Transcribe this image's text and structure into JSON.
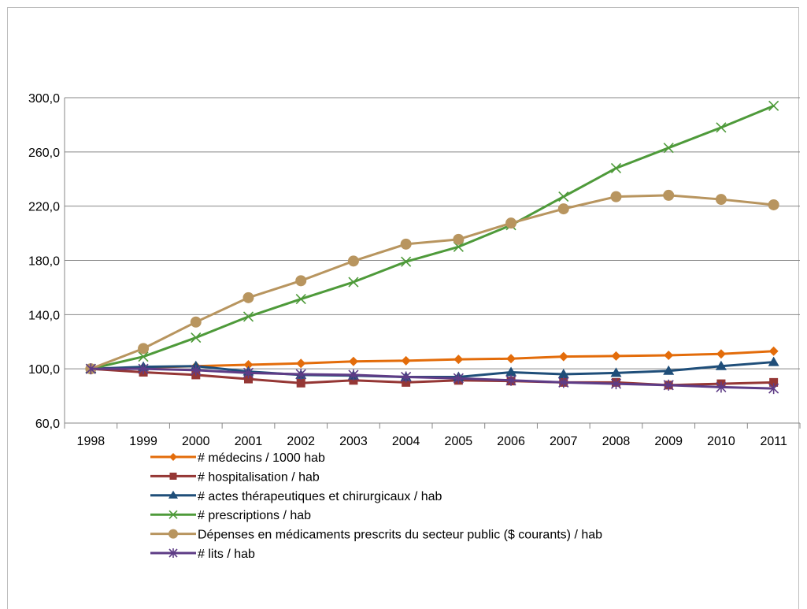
{
  "chart_data": {
    "type": "line",
    "title": "",
    "xlabel": "",
    "ylabel": "",
    "x": [
      "1998",
      "1999",
      "2000",
      "2001",
      "2002",
      "2003",
      "2004",
      "2005",
      "2006",
      "2007",
      "2008",
      "2009",
      "2010",
      "2011"
    ],
    "ylim": [
      60,
      300
    ],
    "yticks": [
      60,
      100,
      140,
      180,
      220,
      260,
      300
    ],
    "ytick_labels": [
      "60,0",
      "100,0",
      "140,0",
      "180,0",
      "220,0",
      "260,0",
      "300,0"
    ],
    "grid": true,
    "legend_position": "bottom",
    "series": [
      {
        "name": "# médecins / 1000 hab",
        "color": "#E36C0A",
        "marker": "diamond",
        "values": [
          100,
          101,
          102,
          103,
          104,
          105.5,
          106,
          107,
          107.5,
          109,
          109.5,
          110,
          111,
          113
        ]
      },
      {
        "name": "# hospitalisation / hab",
        "color": "#953735",
        "marker": "square",
        "values": [
          100,
          97.5,
          95.5,
          92.5,
          89.5,
          91.5,
          90,
          91.5,
          91,
          90,
          90,
          88,
          89,
          90
        ]
      },
      {
        "name": "# actes thérapeutiques et chirurgicaux / hab",
        "color": "#1F4E79",
        "marker": "triangle",
        "values": [
          100,
          101.5,
          102,
          98,
          95.5,
          95,
          94,
          94,
          97.5,
          96,
          97,
          98.5,
          102,
          105
        ]
      },
      {
        "name": "# prescriptions / hab",
        "color": "#4E9A3A",
        "marker": "x",
        "values": [
          100,
          109,
          123,
          138.5,
          151.5,
          164,
          179,
          190,
          206,
          227,
          248,
          263,
          278,
          294
        ]
      },
      {
        "name": "Dépenses en médicaments prescrits du secteur public ($ courants) / hab",
        "color": "#B8955F",
        "marker": "circle",
        "values": [
          100,
          115,
          134.5,
          152.5,
          165,
          179.5,
          192,
          195.5,
          207.5,
          218,
          227,
          228,
          225,
          221
        ]
      },
      {
        "name": "# lits / hab",
        "color": "#5E3C86",
        "marker": "star",
        "values": [
          100,
          100,
          99,
          97,
          96,
          95.5,
          94,
          93,
          91.5,
          90,
          89,
          88,
          86.5,
          85.5
        ]
      }
    ]
  }
}
